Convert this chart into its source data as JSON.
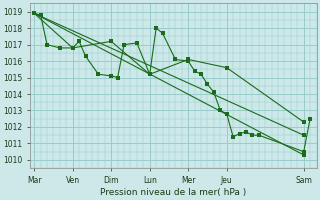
{
  "title": "",
  "xlabel": "Pression niveau de la mer( hPa )",
  "ylabel": "",
  "background_color": "#cce8e8",
  "grid_color": "#99cccc",
  "line_color": "#1a6b1a",
  "ylim": [
    1009.5,
    1019.5
  ],
  "yticks": [
    1010,
    1011,
    1012,
    1013,
    1014,
    1015,
    1016,
    1017,
    1018,
    1019
  ],
  "x_day_labels": [
    "Mar",
    "Ven",
    "Dim",
    "Lun",
    "Mer",
    "Jeu",
    "Sam"
  ],
  "x_day_positions": [
    0,
    30,
    60,
    90,
    120,
    150,
    210
  ],
  "series": [
    {
      "x": [
        0,
        5,
        10,
        20,
        30,
        35,
        40,
        50,
        60,
        65,
        70,
        80,
        90,
        95,
        100,
        110,
        120,
        125,
        130,
        135,
        140,
        145,
        150,
        155,
        160,
        165,
        170,
        175,
        210,
        215
      ],
      "y": [
        1018.9,
        1018.8,
        1017.0,
        1016.8,
        1016.8,
        1017.2,
        1016.3,
        1015.2,
        1015.1,
        1015.0,
        1017.0,
        1017.1,
        1015.2,
        1018.0,
        1017.7,
        1016.1,
        1016.0,
        1015.4,
        1015.2,
        1014.6,
        1014.1,
        1013.0,
        1012.8,
        1011.4,
        1011.6,
        1011.7,
        1011.5,
        1011.5,
        1010.5,
        1012.5
      ],
      "markers": true
    },
    {
      "x": [
        0,
        210
      ],
      "y": [
        1018.9,
        1011.5
      ],
      "markers": true
    },
    {
      "x": [
        0,
        210
      ],
      "y": [
        1018.9,
        1010.3
      ],
      "markers": true
    },
    {
      "x": [
        0,
        30,
        60,
        90,
        120,
        150,
        210
      ],
      "y": [
        1018.9,
        1016.8,
        1017.2,
        1015.2,
        1016.1,
        1015.6,
        1012.3
      ],
      "markers": true
    }
  ],
  "xlim": [
    -3,
    220
  ]
}
